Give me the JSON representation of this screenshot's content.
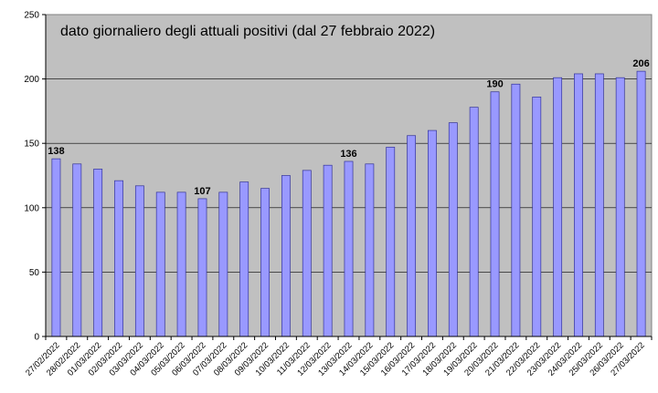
{
  "chart_data": {
    "type": "bar",
    "title": "dato giornaliero degli attuali positivi (dal 27 febbraio 2022)",
    "xlabel": "",
    "ylabel": "",
    "ylim": [
      0,
      250
    ],
    "yticks": [
      0,
      50,
      100,
      150,
      200,
      250
    ],
    "grid": true,
    "legend": "none",
    "categories": [
      "27/02/2022",
      "28/02/2022",
      "01/03/2022",
      "02/03/2022",
      "03/03/2022",
      "04/03/2022",
      "05/03/2022",
      "06/03/2022",
      "07/03/2022",
      "08/03/2022",
      "09/03/2022",
      "10/03/2022",
      "11/03/2022",
      "12/03/2022",
      "13/03/2022",
      "14/03/2022",
      "15/03/2022",
      "16/03/2022",
      "17/03/2022",
      "18/03/2022",
      "19/03/2022",
      "20/03/2022",
      "21/03/2022",
      "22/03/2022",
      "23/03/2022",
      "24/03/2022",
      "25/03/2022",
      "26/03/2022",
      "27/03/2022"
    ],
    "values": [
      138,
      134,
      130,
      121,
      117,
      112,
      112,
      107,
      112,
      120,
      115,
      125,
      129,
      133,
      136,
      134,
      147,
      156,
      160,
      166,
      178,
      190,
      196,
      186,
      201,
      204,
      204,
      201,
      206
    ],
    "data_labels": [
      {
        "category": "27/02/2022",
        "text": "138"
      },
      {
        "category": "06/03/2022",
        "text": "107"
      },
      {
        "category": "13/03/2022",
        "text": "136"
      },
      {
        "category": "20/03/2022",
        "text": "190"
      },
      {
        "category": "27/03/2022",
        "text": "206"
      }
    ],
    "colors": {
      "bar_fill": "#9999ff",
      "bar_stroke": "#333399",
      "plot_bg": "#c0c0c0",
      "gridline": "#000000"
    }
  }
}
